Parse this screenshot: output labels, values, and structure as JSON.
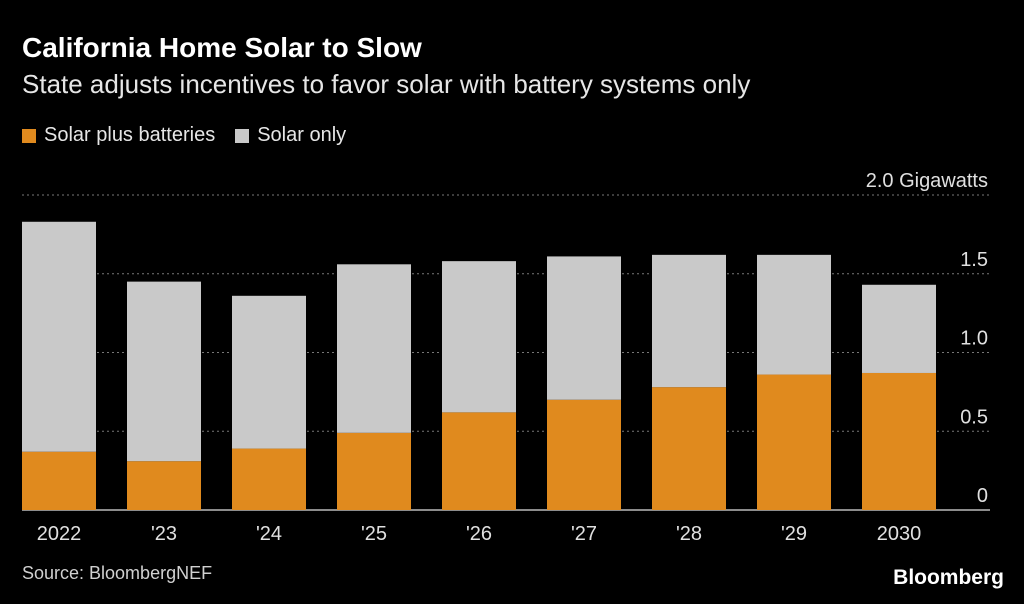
{
  "title": "California Home Solar to Slow",
  "subtitle": "State adjusts incentives to favor solar with battery systems only",
  "source": "Source: BloombergNEF",
  "brand": "Bloomberg",
  "colors": {
    "solar_plus_batteries": "#e08a1e",
    "solar_only": "#c9c9c9",
    "background": "#000000"
  },
  "chart_data": {
    "type": "bar",
    "stacked": true,
    "categories": [
      "2022",
      "'23",
      "'24",
      "'25",
      "'26",
      "'27",
      "'28",
      "'29",
      "2030"
    ],
    "series": [
      {
        "name": "Solar plus batteries",
        "values": [
          0.37,
          0.31,
          0.39,
          0.49,
          0.62,
          0.7,
          0.78,
          0.86,
          0.87
        ]
      },
      {
        "name": "Solar only",
        "values": [
          1.46,
          1.14,
          0.97,
          1.07,
          0.96,
          0.91,
          0.84,
          0.76,
          0.56
        ]
      }
    ],
    "ylim": [
      0,
      2.0
    ],
    "yticks": [
      {
        "value": 0,
        "label": "0"
      },
      {
        "value": 0.5,
        "label": "0.5"
      },
      {
        "value": 1.0,
        "label": "1.0"
      },
      {
        "value": 1.5,
        "label": "1.5"
      },
      {
        "value": 2.0,
        "label": "2.0 Gigawatts"
      }
    ],
    "ylabel": "Gigawatts",
    "grid": true,
    "legend_position": "top-left"
  }
}
